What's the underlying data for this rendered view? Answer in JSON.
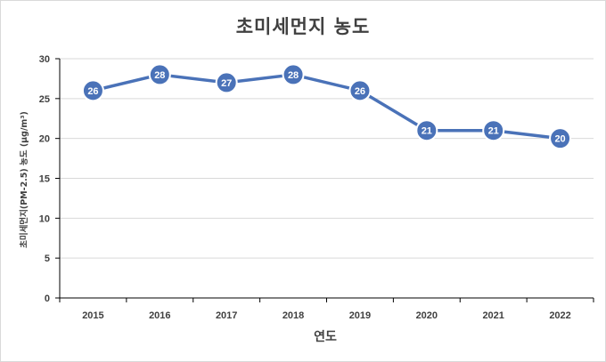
{
  "chart_data": {
    "type": "line",
    "title": "초미세먼지 농도",
    "xlabel": "연도",
    "ylabel": "초미세먼지(PM-2.5) 농도 (μg/m³)",
    "categories": [
      "2015",
      "2016",
      "2017",
      "2018",
      "2019",
      "2020",
      "2021",
      "2022"
    ],
    "series": [
      {
        "values": [
          26,
          28,
          27,
          28,
          26,
          21,
          21,
          20
        ]
      }
    ],
    "ylim": [
      0,
      30
    ],
    "yticks": [
      0,
      5,
      10,
      15,
      20,
      25,
      30
    ],
    "grid": true,
    "legend": "none",
    "data_labels": true,
    "colors": {
      "line": "#4a72b8",
      "marker": "#4a72b8",
      "marker_border": "#ffffff",
      "grid": "#d9d9d9",
      "axis": "#000000"
    }
  }
}
